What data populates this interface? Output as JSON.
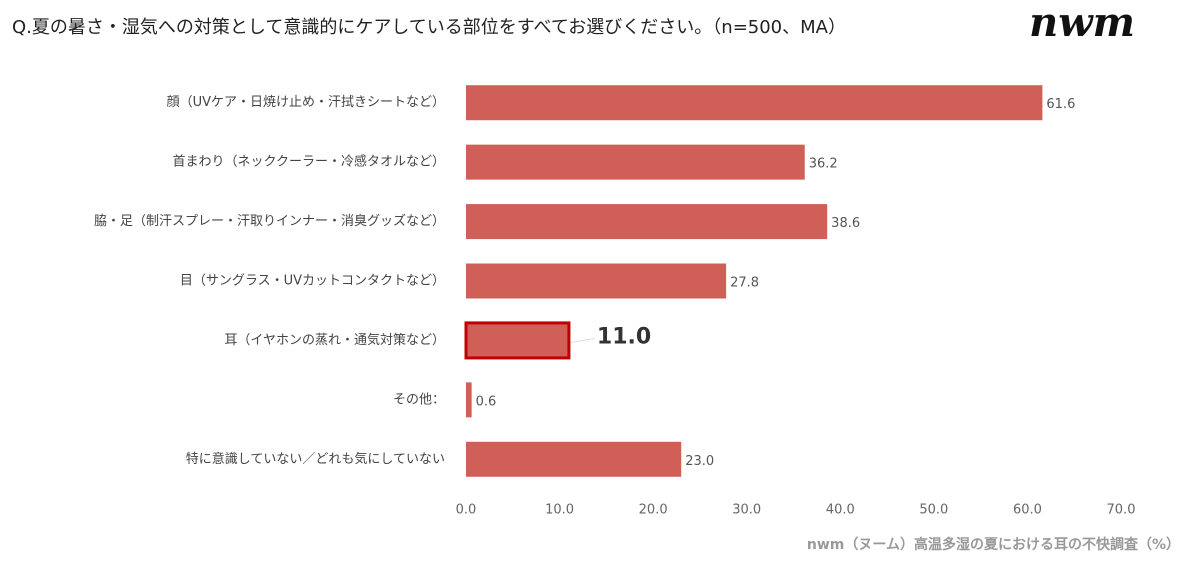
{
  "chart_data": {
    "type": "bar",
    "orientation": "horizontal",
    "title": "Q.夏の暑さ・湿気への対策として意識的にケアしている部位をすべてお選びください。（n=500、MA）",
    "logo": "nwm",
    "source": "nwm（ヌーム）高温多湿の夏における耳の不快調査（%）",
    "categories": [
      "顔（UVケア・日焼け止め・汗拭きシートなど）",
      "首まわり（ネッククーラー・冷感タオルなど）",
      "脇・足（制汗スプレー・汗取りインナー・消臭グッズなど）",
      "目（サングラス・UVカットコンタクトなど）",
      "耳（イヤホンの蒸れ・通気対策など）",
      "その他：",
      "特に意識していない／どれも気にしていない"
    ],
    "values": [
      61.6,
      36.2,
      38.6,
      27.8,
      11.0,
      0.6,
      23.0
    ],
    "value_labels": [
      "61.6",
      "36.2",
      "38.6",
      "27.8",
      "11.0",
      "0.6",
      "23.0"
    ],
    "color": "#d05f58",
    "highlight": 4,
    "highlight_color": "#c00000",
    "xlim": [
      0,
      70
    ],
    "xticks": [
      {
        "value": 0,
        "label": "0.0"
      },
      {
        "value": 10,
        "label": "10.0"
      },
      {
        "value": 20,
        "label": "20.0"
      },
      {
        "value": 30,
        "label": "30.0"
      },
      {
        "value": 40,
        "label": "40.0"
      },
      {
        "value": 50,
        "label": "50.0"
      },
      {
        "value": 60,
        "label": "60.0"
      },
      {
        "value": 70,
        "label": "70.0"
      }
    ]
  }
}
